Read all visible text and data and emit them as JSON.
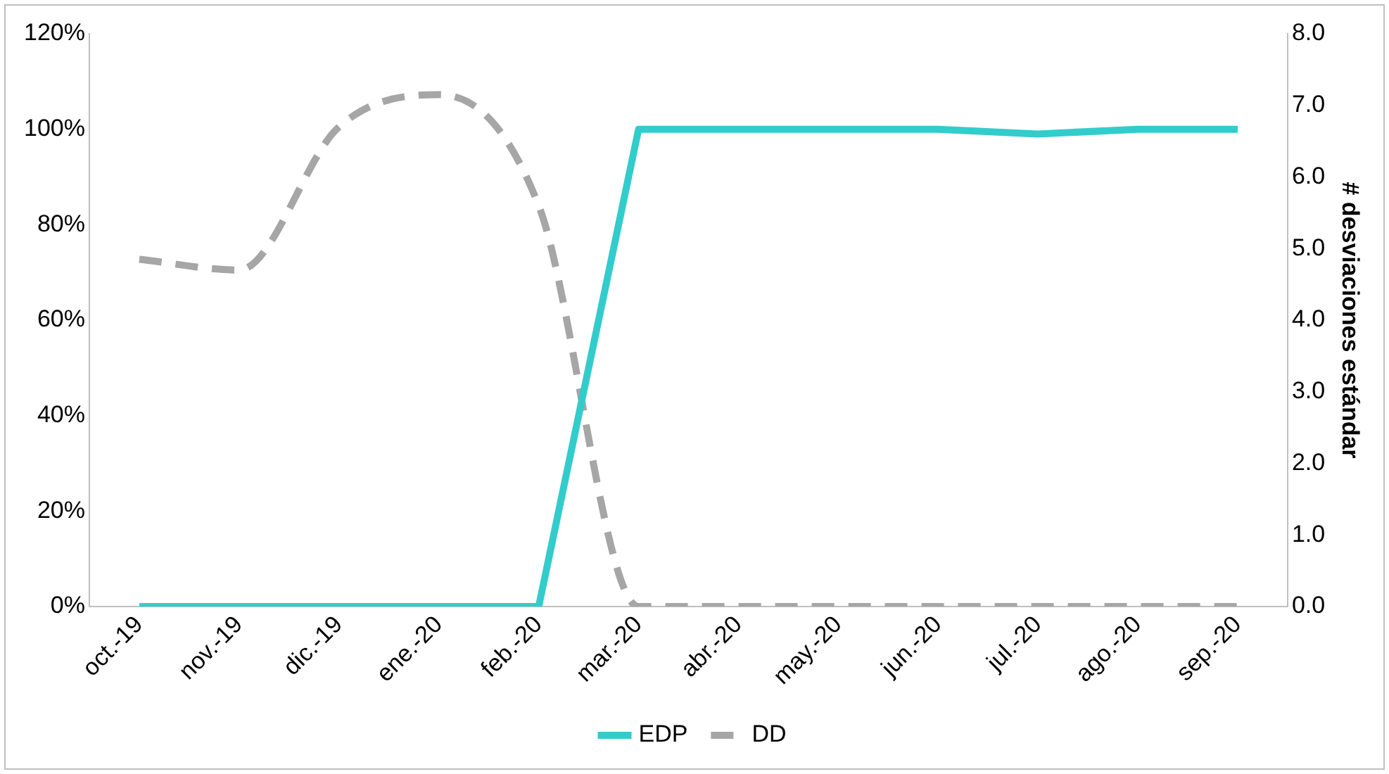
{
  "chart_data": {
    "type": "line",
    "y2label": "# desviaciones estándar",
    "categories": [
      "oct.-19",
      "nov.-19",
      "dic.-19",
      "ene.-20",
      "feb.-20",
      "mar.-20",
      "abr.-20",
      "may.-20",
      "jun.-20",
      "jul.-20",
      "ago.-20",
      "sep.-20"
    ],
    "series": [
      {
        "name": "EDP",
        "color": "#33cccc",
        "line_style": "solid",
        "values": [
          0,
          0,
          0,
          0,
          0,
          100,
          100,
          100,
          100,
          99,
          100,
          100
        ]
      },
      {
        "name": "DD",
        "color": "#a6a6a6",
        "line_style": "dashed",
        "axis": "y2",
        "values": [
          4.85,
          4.7,
          6.7,
          7.15,
          5.6,
          0,
          0,
          0,
          0,
          0,
          0,
          0
        ]
      }
    ],
    "ylim": [
      0,
      120
    ],
    "yticks": [
      {
        "value": 0,
        "label": "0%"
      },
      {
        "value": 20,
        "label": "20%"
      },
      {
        "value": 40,
        "label": "40%"
      },
      {
        "value": 60,
        "label": "60%"
      },
      {
        "value": 80,
        "label": "80%"
      },
      {
        "value": 100,
        "label": "100%"
      },
      {
        "value": 120,
        "label": "120%"
      }
    ],
    "y2lim": [
      0,
      8
    ],
    "y2ticks": [
      {
        "value": 0,
        "label": "0.0"
      },
      {
        "value": 1,
        "label": "1.0"
      },
      {
        "value": 2,
        "label": "2.0"
      },
      {
        "value": 3,
        "label": "3.0"
      },
      {
        "value": 4,
        "label": "4.0"
      },
      {
        "value": 5,
        "label": "5.0"
      },
      {
        "value": 6,
        "label": "6.0"
      },
      {
        "value": 7,
        "label": "7.0"
      },
      {
        "value": 8,
        "label": "8.0"
      }
    ],
    "grid": false,
    "legend": "bottom",
    "marker": "none"
  }
}
